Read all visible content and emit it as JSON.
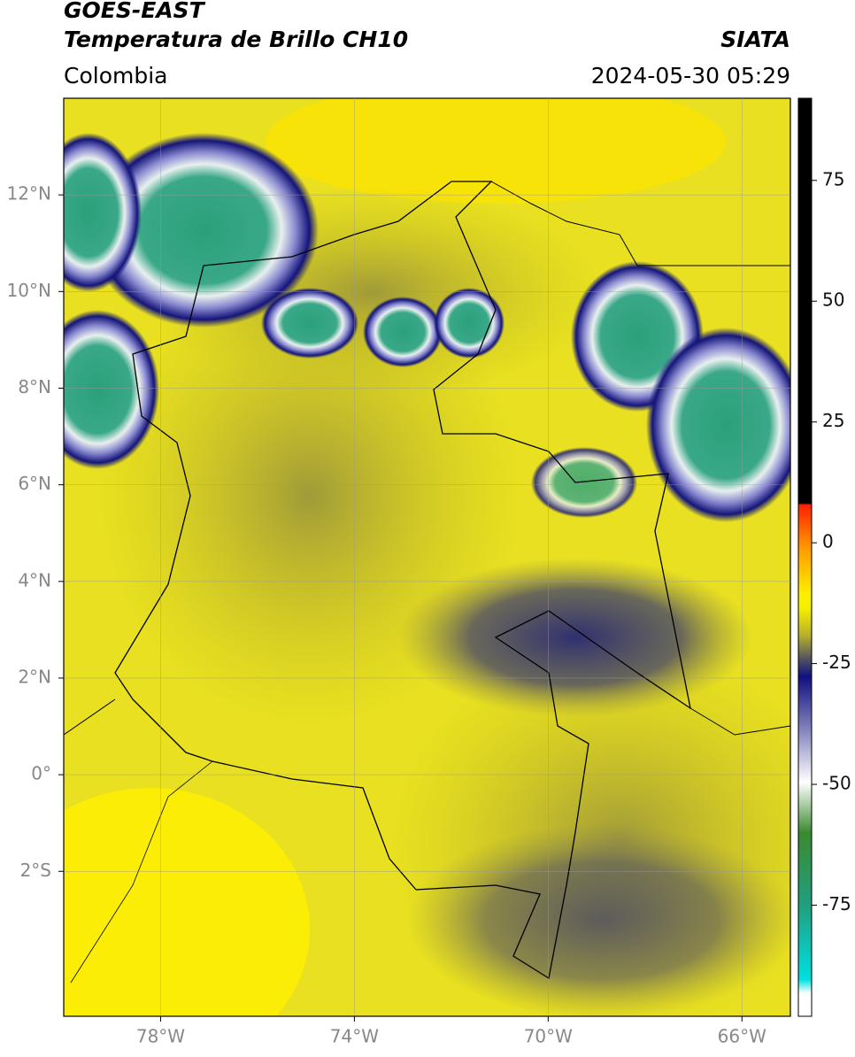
{
  "header": {
    "title": "GOES-EAST",
    "subtitle": "Temperatura de Brillo CH10",
    "region": "Colombia",
    "source": "SIATA",
    "datetime": "2024-05-30 05:29"
  },
  "map": {
    "xlim": [
      -80,
      -65
    ],
    "ylim": [
      -5,
      14
    ],
    "grid": true,
    "xticks": [
      {
        "value": -78,
        "label": "78°W"
      },
      {
        "value": -74,
        "label": "74°W"
      },
      {
        "value": -70,
        "label": "70°W"
      },
      {
        "value": -66,
        "label": "66°W"
      }
    ],
    "yticks": [
      {
        "value": 12,
        "label": "12°N"
      },
      {
        "value": 10,
        "label": "10°N"
      },
      {
        "value": 8,
        "label": "8°N"
      },
      {
        "value": 6,
        "label": "6°N"
      },
      {
        "value": 4,
        "label": "4°N"
      },
      {
        "value": 2,
        "label": "2°N"
      },
      {
        "value": 0,
        "label": "0°"
      },
      {
        "value": -2,
        "label": "2°S"
      }
    ]
  },
  "colorbar": {
    "lim": [
      -98,
      92
    ],
    "ticks": [
      75,
      50,
      25,
      0,
      -25,
      -50,
      -75
    ]
  }
}
